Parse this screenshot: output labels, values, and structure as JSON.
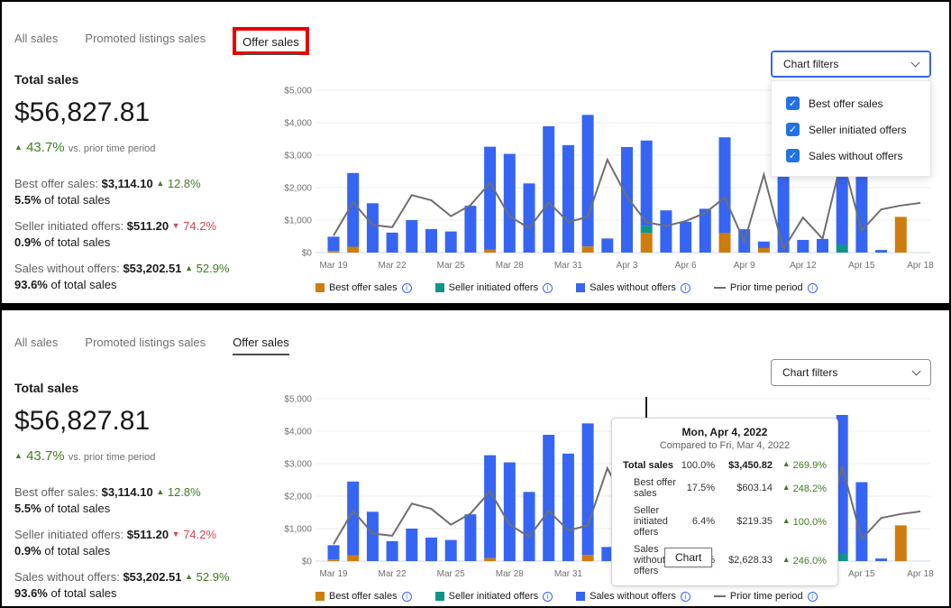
{
  "colors": {
    "best_offer": "#ce7c0d",
    "seller_initiated": "#0e9488",
    "sales_without": "#3665f3",
    "prior_line": "#6f6f6f",
    "grid": "#ececec",
    "axis_base": "#c9d7f5",
    "positive_green": "#3f7d20",
    "negative_red": "#d5434f",
    "checkbox_blue": "#2272e6",
    "filters_open_border": "#3665f3",
    "annotation_red": "#e90000"
  },
  "icons": {
    "up": "▲",
    "down": "▼",
    "info": "info-circle",
    "chevron": "chevron-down",
    "check": "checkmark"
  },
  "tabs": {
    "items": [
      {
        "label": "All sales",
        "active": false
      },
      {
        "label": "Promoted listings sales",
        "active": false
      },
      {
        "label": "Offer sales",
        "active": true
      }
    ]
  },
  "summary": {
    "title": "Total sales",
    "total": "$56,827.81",
    "change": "43.7%",
    "change_dir": "up",
    "change_suffix": "vs. prior time period",
    "stats": [
      {
        "label": "Best offer sales:",
        "value": "$3,114.10",
        "change": "12.8%",
        "dir": "up",
        "share": "5.5%",
        "share_suffix": "of total sales"
      },
      {
        "label": "Seller initiated offers:",
        "value": "$511.20",
        "change": "74.2%",
        "dir": "down",
        "share": "0.9%",
        "share_suffix": "of total sales"
      },
      {
        "label": "Sales without offers:",
        "value": "$53,202.51",
        "change": "52.9%",
        "dir": "up",
        "share": "93.6%",
        "share_suffix": "of total sales"
      }
    ]
  },
  "filters": {
    "button_label": "Chart filters",
    "options": [
      {
        "label": "Best offer sales",
        "checked": true
      },
      {
        "label": "Seller initiated offers",
        "checked": true
      },
      {
        "label": "Sales without offers",
        "checked": true
      }
    ]
  },
  "legend": {
    "items": [
      {
        "label": "Best offer sales",
        "color": "#ce7c0d",
        "swatch": "square"
      },
      {
        "label": "Seller initiated offers",
        "color": "#0e9488",
        "swatch": "square"
      },
      {
        "label": "Sales without offers",
        "color": "#3665f3",
        "swatch": "square"
      },
      {
        "label": "Prior time period",
        "color": "#6f6f6f",
        "swatch": "line"
      }
    ]
  },
  "tooltip": {
    "title": "Mon, Apr 4, 2022",
    "subtitle": "Compared to Fri, Mar 4, 2022",
    "rows": [
      {
        "label": "Total sales",
        "pct": "100.0%",
        "value": "$3,450.82",
        "change": "269.9%",
        "dir": "up",
        "main": true
      },
      {
        "label": "Best offer sales",
        "pct": "17.5%",
        "value": "$603.14",
        "change": "248.2%",
        "dir": "up",
        "main": false
      },
      {
        "label": "Seller initiated offers",
        "pct": "6.4%",
        "value": "$219.35",
        "change": "100.0%",
        "dir": "up",
        "main": false
      },
      {
        "label": "Sales without offers",
        "pct": "76.2%",
        "value": "$2,628.33",
        "change": "246.0%",
        "dir": "up",
        "main": false
      }
    ]
  },
  "hover_label": "Chart",
  "chart_data": {
    "type": "bar",
    "stacked": true,
    "categories": [
      "Mar 19",
      "Mar 20",
      "Mar 21",
      "Mar 22",
      "Mar 23",
      "Mar 24",
      "Mar 25",
      "Mar 26",
      "Mar 27",
      "Mar 28",
      "Mar 29",
      "Mar 30",
      "Mar 31",
      "Apr 1",
      "Apr 2",
      "Apr 3",
      "Apr 4",
      "Apr 5",
      "Apr 6",
      "Apr 7",
      "Apr 8",
      "Apr 9",
      "Apr 10",
      "Apr 11",
      "Apr 12",
      "Apr 13",
      "Apr 14",
      "Apr 15",
      "Apr 16",
      "Apr 17",
      "Apr 18"
    ],
    "x_tick_every": 3,
    "y_tick_labels": [
      "$0",
      "$1,000",
      "$2,000",
      "$3,000",
      "$4,000",
      "$5,000"
    ],
    "ylim": [
      0,
      5000
    ],
    "grid": true,
    "legend_position": "bottom",
    "series": [
      {
        "name": "Best offer sales",
        "kind": "bar",
        "color": "#ce7c0d",
        "values": [
          50,
          180,
          0,
          0,
          0,
          0,
          0,
          0,
          90,
          0,
          0,
          0,
          0,
          190,
          0,
          0,
          603.14,
          0,
          0,
          0,
          600,
          0,
          140,
          0,
          0,
          0,
          0,
          0,
          0,
          1100,
          0
        ]
      },
      {
        "name": "Seller initiated offers",
        "kind": "bar",
        "color": "#0e9488",
        "values": [
          0,
          0,
          0,
          0,
          0,
          0,
          0,
          0,
          0,
          0,
          0,
          0,
          0,
          0,
          0,
          0,
          219.35,
          0,
          0,
          0,
          0,
          0,
          0,
          0,
          0,
          0,
          250,
          0,
          0,
          0,
          0
        ]
      },
      {
        "name": "Sales without offers",
        "kind": "bar",
        "color": "#3665f3",
        "values": [
          440,
          2270,
          1520,
          615,
          1000,
          725,
          650,
          1440,
          3170,
          3040,
          2130,
          3890,
          3310,
          4050,
          435,
          3250,
          2628.33,
          1300,
          950,
          1350,
          2950,
          720,
          200,
          2600,
          390,
          420,
          4250,
          2430,
          80,
          0,
          0
        ]
      },
      {
        "name": "Prior time period",
        "kind": "line",
        "color": "#6f6f6f",
        "values": [
          520,
          1550,
          850,
          780,
          1770,
          1610,
          1120,
          1460,
          2150,
          1120,
          750,
          1550,
          940,
          1100,
          2860,
          1720,
          933,
          820,
          970,
          1220,
          1700,
          330,
          2400,
          100,
          1080,
          430,
          2930,
          680,
          1330,
          1450,
          1530
        ]
      }
    ],
    "hover_index": 16
  }
}
